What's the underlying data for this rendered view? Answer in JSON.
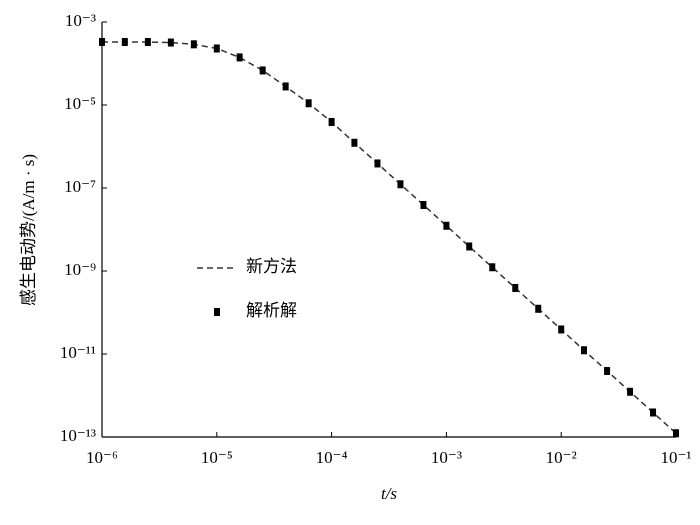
{
  "chart_data": {
    "type": "line",
    "x_label": "t/s",
    "y_label": "感生电动势/(A/m · s)",
    "xscale": "log",
    "yscale": "log",
    "xlim": [
      1e-06,
      0.1
    ],
    "ylim": [
      1e-13,
      0.001
    ],
    "xticks": [
      {
        "value": 1e-06,
        "label": "10⁻⁶"
      },
      {
        "value": 1e-05,
        "label": "10⁻⁵"
      },
      {
        "value": 0.0001,
        "label": "10⁻⁴"
      },
      {
        "value": 0.001,
        "label": "10⁻³"
      },
      {
        "value": 0.01,
        "label": "10⁻²"
      },
      {
        "value": 0.1,
        "label": "10⁻¹"
      }
    ],
    "yticks": [
      {
        "value": 1e-13,
        "label": "10⁻¹³"
      },
      {
        "value": 1e-11,
        "label": "10⁻¹¹"
      },
      {
        "value": 1e-09,
        "label": "10⁻⁹"
      },
      {
        "value": 1e-07,
        "label": "10⁻⁷"
      },
      {
        "value": 1e-05,
        "label": "10⁻⁵"
      },
      {
        "value": 0.001,
        "label": "10⁻³"
      }
    ],
    "legend": "left",
    "x": [
      1e-06,
      1.58e-06,
      2.51e-06,
      3.98e-06,
      6.31e-06,
      1e-05,
      1.58e-05,
      2.51e-05,
      3.98e-05,
      6.31e-05,
      0.0001,
      0.000158,
      0.000251,
      0.000398,
      0.000631,
      0.001,
      0.00158,
      0.00251,
      0.00398,
      0.00631,
      0.01,
      0.0158,
      0.0251,
      0.0398,
      0.0631,
      0.1
    ],
    "series": [
      {
        "name": "新方法",
        "color": "#333333",
        "line": "dashed",
        "values": [
          0.00033,
          0.00033,
          0.00033,
          0.00032,
          0.00029,
          0.00023,
          0.00014,
          6.8e-05,
          2.8e-05,
          1.1e-05,
          3.9e-06,
          1.23e-06,
          3.9e-07,
          1.23e-07,
          3.9e-08,
          1.23e-08,
          3.9e-09,
          1.23e-09,
          3.9e-10,
          1.23e-10,
          3.9e-11,
          1.23e-11,
          3.9e-12,
          1.23e-12,
          3.9e-13,
          1.23e-13
        ]
      },
      {
        "name": "解析解",
        "color": "#000000",
        "marker": "square",
        "values": [
          0.00033,
          0.00033,
          0.00033,
          0.00032,
          0.00029,
          0.00023,
          0.00014,
          6.8e-05,
          2.8e-05,
          1.1e-05,
          3.9e-06,
          1.23e-06,
          3.9e-07,
          1.23e-07,
          3.9e-08,
          1.23e-08,
          3.9e-09,
          1.23e-09,
          3.9e-10,
          1.23e-10,
          3.9e-11,
          1.23e-11,
          3.9e-12,
          1.23e-12,
          3.9e-13,
          1.23e-13
        ]
      }
    ]
  }
}
